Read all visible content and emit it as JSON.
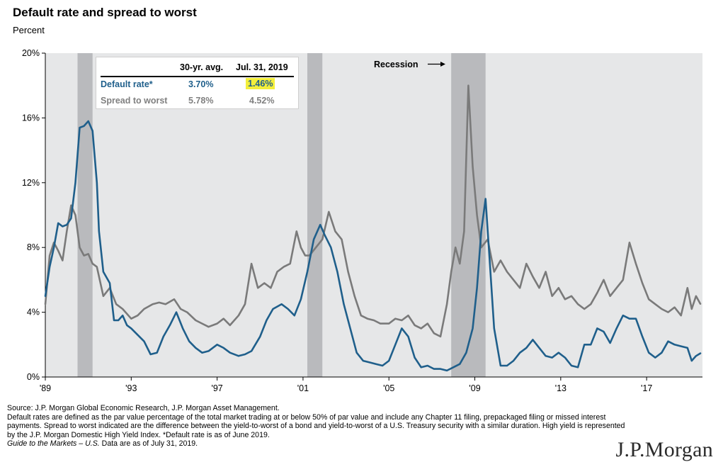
{
  "title": "Default rate and spread to worst",
  "subtitle": "Percent",
  "annotation": "Recession",
  "legend_table": {
    "headers": [
      "",
      "30-yr. avg.",
      "Jul. 31, 2019"
    ],
    "rows": [
      {
        "label": "Default rate*",
        "avg": "3.70%",
        "current": "1.46%",
        "color": "#1f5f8b"
      },
      {
        "label": "Spread to worst",
        "avg": "5.78%",
        "current": "4.52%",
        "color": "#808080"
      }
    ],
    "highlight_color": "#f3ef3b"
  },
  "footnotes": [
    "Source: J.P. Morgan Global Economic Research, J.P. Morgan Asset Management.",
    "Default rates are defined as the par value percentage of the total market trading at or below 50% of par value and include any Chapter 11 filing, prepackaged filing or missed interest payments. Spread to worst indicated are the difference between the yield-to-worst of a bond and yield-to-worst of a U.S. Treasury security with a similar duration. High yield is represented by the J.P. Morgan Domestic High Yield Index. *Default rate is as of June 2019."
  ],
  "footnote_guide": "Guide to the Markets – U.S.",
  "footnote_guide_suffix": " Data are as of July 31, 2019.",
  "logo_text": "J.P.Morgan",
  "chart_data": {
    "type": "line",
    "xlim": [
      1989.0,
      2019.6
    ],
    "ylim": [
      0,
      20
    ],
    "yticks": [
      0,
      4,
      8,
      12,
      16,
      20
    ],
    "ytick_labels": [
      "0%",
      "4%",
      "8%",
      "12%",
      "16%",
      "20%"
    ],
    "xticks": [
      1989,
      1993,
      1997,
      2001,
      2005,
      2009,
      2013,
      2017
    ],
    "xtick_labels": [
      "'89",
      "'93",
      "'97",
      "'01",
      "'05",
      "'09",
      "'13",
      "'17"
    ],
    "grid": false,
    "recessions": [
      [
        1990.5,
        1991.2
      ],
      [
        2001.2,
        2001.9
      ],
      [
        2007.9,
        2009.5
      ]
    ],
    "colors": {
      "default": "#1f5f8b",
      "spread": "#7a7a7a",
      "recession": "#b9babd",
      "plot_bg": "#e6e7e8"
    },
    "series": [
      {
        "name": "Default rate*",
        "x": [
          1989.0,
          1989.2,
          1989.4,
          1989.6,
          1989.8,
          1990.0,
          1990.2,
          1990.4,
          1990.6,
          1990.8,
          1991.0,
          1991.2,
          1991.4,
          1991.5,
          1991.7,
          1992.0,
          1992.2,
          1992.4,
          1992.6,
          1992.8,
          1993.0,
          1993.3,
          1993.6,
          1993.9,
          1994.2,
          1994.5,
          1994.8,
          1995.1,
          1995.4,
          1995.7,
          1996.0,
          1996.3,
          1996.6,
          1997.0,
          1997.3,
          1997.6,
          1998.0,
          1998.3,
          1998.6,
          1999.0,
          1999.3,
          1999.6,
          2000.0,
          2000.3,
          2000.6,
          2000.9,
          2001.2,
          2001.5,
          2001.8,
          2002.0,
          2002.3,
          2002.6,
          2002.9,
          2003.2,
          2003.5,
          2003.8,
          2004.1,
          2004.4,
          2004.7,
          2005.0,
          2005.3,
          2005.6,
          2005.9,
          2006.2,
          2006.5,
          2006.8,
          2007.1,
          2007.4,
          2007.7,
          2008.0,
          2008.3,
          2008.6,
          2008.9,
          2009.1,
          2009.3,
          2009.5,
          2009.7,
          2009.9,
          2010.2,
          2010.5,
          2010.8,
          2011.1,
          2011.4,
          2011.7,
          2012.0,
          2012.3,
          2012.6,
          2012.9,
          2013.2,
          2013.5,
          2013.8,
          2014.1,
          2014.4,
          2014.7,
          2015.0,
          2015.3,
          2015.6,
          2015.9,
          2016.2,
          2016.5,
          2016.8,
          2017.1,
          2017.4,
          2017.7,
          2018.0,
          2018.3,
          2018.6,
          2018.9,
          2019.1,
          2019.3,
          2019.5
        ],
        "values": [
          5.0,
          6.8,
          8.0,
          9.5,
          9.3,
          9.4,
          9.8,
          12.0,
          15.4,
          15.5,
          15.8,
          15.2,
          12.0,
          9.0,
          6.5,
          5.8,
          3.5,
          3.5,
          3.8,
          3.2,
          3.0,
          2.6,
          2.2,
          1.4,
          1.5,
          2.5,
          3.2,
          4.0,
          3.0,
          2.2,
          1.8,
          1.5,
          1.6,
          2.0,
          1.8,
          1.5,
          1.3,
          1.4,
          1.6,
          2.5,
          3.5,
          4.2,
          4.5,
          4.2,
          3.8,
          4.8,
          6.5,
          8.5,
          9.4,
          8.8,
          8.0,
          6.5,
          4.5,
          3.0,
          1.5,
          1.0,
          0.9,
          0.8,
          0.7,
          1.0,
          2.0,
          3.0,
          2.5,
          1.2,
          0.6,
          0.7,
          0.5,
          0.5,
          0.4,
          0.6,
          0.8,
          1.5,
          3.0,
          5.5,
          9.0,
          11.0,
          7.0,
          3.0,
          0.7,
          0.7,
          1.0,
          1.5,
          1.8,
          2.3,
          1.8,
          1.3,
          1.2,
          1.5,
          1.2,
          0.7,
          0.6,
          2.0,
          2.0,
          3.0,
          2.8,
          2.1,
          3.0,
          3.8,
          3.6,
          3.6,
          2.5,
          1.5,
          1.2,
          1.5,
          2.2,
          2.0,
          1.9,
          1.8,
          1.0,
          1.3,
          1.46
        ]
      },
      {
        "name": "Spread to worst",
        "x": [
          1989.0,
          1989.2,
          1989.4,
          1989.6,
          1989.8,
          1990.0,
          1990.2,
          1990.4,
          1990.6,
          1990.8,
          1991.0,
          1991.2,
          1991.4,
          1991.7,
          1992.0,
          1992.3,
          1992.6,
          1993.0,
          1993.3,
          1993.6,
          1994.0,
          1994.3,
          1994.6,
          1995.0,
          1995.3,
          1995.6,
          1996.0,
          1996.3,
          1996.6,
          1997.0,
          1997.3,
          1997.6,
          1998.0,
          1998.3,
          1998.6,
          1998.9,
          1999.2,
          1999.5,
          1999.8,
          2000.1,
          2000.4,
          2000.7,
          2000.9,
          2001.1,
          2001.3,
          2001.6,
          2001.9,
          2002.2,
          2002.5,
          2002.8,
          2003.1,
          2003.4,
          2003.7,
          2004.0,
          2004.3,
          2004.6,
          2005.0,
          2005.3,
          2005.6,
          2005.9,
          2006.2,
          2006.5,
          2006.8,
          2007.1,
          2007.4,
          2007.7,
          2007.9,
          2008.1,
          2008.3,
          2008.5,
          2008.7,
          2008.9,
          2009.1,
          2009.3,
          2009.6,
          2009.9,
          2010.2,
          2010.5,
          2010.8,
          2011.1,
          2011.4,
          2011.7,
          2012.0,
          2012.3,
          2012.6,
          2012.9,
          2013.2,
          2013.5,
          2013.8,
          2014.1,
          2014.4,
          2014.7,
          2015.0,
          2015.3,
          2015.6,
          2015.9,
          2016.2,
          2016.5,
          2016.8,
          2017.1,
          2017.4,
          2017.7,
          2018.0,
          2018.3,
          2018.6,
          2018.9,
          2019.1,
          2019.3,
          2019.5
        ],
        "values": [
          4.5,
          7.5,
          8.3,
          7.8,
          7.2,
          9.0,
          10.6,
          10.0,
          8.0,
          7.5,
          7.6,
          7.0,
          6.8,
          5.0,
          5.5,
          4.5,
          4.2,
          3.6,
          3.8,
          4.2,
          4.5,
          4.6,
          4.5,
          4.8,
          4.2,
          4.0,
          3.5,
          3.3,
          3.1,
          3.3,
          3.6,
          3.2,
          3.8,
          4.5,
          7.0,
          5.5,
          5.8,
          5.5,
          6.5,
          6.8,
          7.0,
          9.0,
          8.0,
          7.5,
          7.5,
          8.0,
          8.5,
          10.2,
          9.0,
          8.5,
          6.5,
          5.0,
          3.8,
          3.6,
          3.5,
          3.3,
          3.3,
          3.6,
          3.5,
          3.8,
          3.2,
          3.0,
          3.3,
          2.7,
          2.5,
          4.5,
          6.5,
          8.0,
          7.0,
          9.0,
          18.0,
          13.0,
          10.0,
          8.0,
          8.5,
          6.5,
          7.2,
          6.5,
          6.0,
          5.5,
          7.0,
          6.2,
          5.5,
          6.5,
          5.0,
          5.5,
          4.8,
          5.0,
          4.5,
          4.2,
          4.5,
          5.2,
          6.0,
          5.0,
          5.5,
          6.0,
          8.3,
          7.0,
          5.8,
          4.8,
          4.5,
          4.2,
          4.0,
          4.3,
          3.8,
          5.5,
          4.2,
          5.0,
          4.52
        ]
      }
    ]
  }
}
